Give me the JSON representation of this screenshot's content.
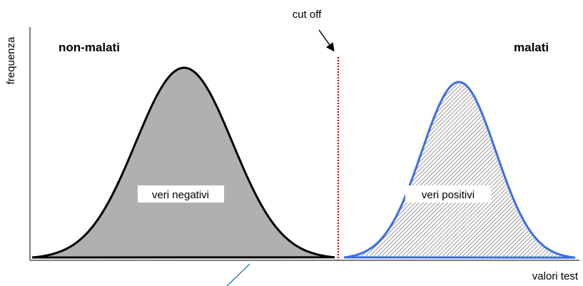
{
  "y_axis_label": "frequenza",
  "x_axis_label": "valori test",
  "groups": [
    {
      "name": "non-malati",
      "region": "veri negativi"
    },
    {
      "name": "malati",
      "region": "veri positivi"
    }
  ],
  "cutoff_label": "cut off"
}
